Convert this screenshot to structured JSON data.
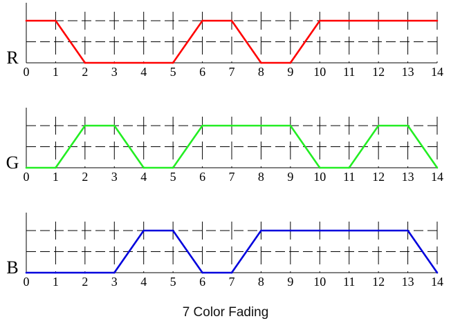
{
  "caption": "7 Color Fading",
  "chart_data": [
    {
      "type": "line",
      "label": "R",
      "color": "#ff0000",
      "x": [
        0,
        1,
        2,
        3,
        4,
        5,
        6,
        7,
        8,
        9,
        10,
        11,
        12,
        13,
        14
      ],
      "values": [
        2,
        2,
        0,
        0,
        0,
        0,
        2,
        2,
        0,
        0,
        2,
        2,
        2,
        2,
        2
      ],
      "xlim": [
        0,
        14
      ],
      "ylim": [
        0,
        2
      ],
      "xticks": [
        "0",
        "1",
        "2",
        "3",
        "4",
        "5",
        "6",
        "7",
        "8",
        "9",
        "10",
        "11",
        "12",
        "13",
        "14"
      ],
      "grid": true
    },
    {
      "type": "line",
      "label": "G",
      "color": "#22ee22",
      "x": [
        0,
        1,
        2,
        3,
        4,
        5,
        6,
        7,
        8,
        9,
        10,
        11,
        12,
        13,
        14
      ],
      "values": [
        0,
        0,
        2,
        2,
        0,
        0,
        2,
        2,
        2,
        2,
        0,
        0,
        2,
        2,
        0
      ],
      "xlim": [
        0,
        14
      ],
      "ylim": [
        0,
        2
      ],
      "xticks": [
        "0",
        "1",
        "2",
        "3",
        "4",
        "5",
        "6",
        "7",
        "8",
        "9",
        "10",
        "11",
        "12",
        "13",
        "14"
      ],
      "grid": true
    },
    {
      "type": "line",
      "label": "B",
      "color": "#0000dd",
      "x": [
        0,
        1,
        2,
        3,
        4,
        5,
        6,
        7,
        8,
        9,
        10,
        11,
        12,
        13,
        14
      ],
      "values": [
        0,
        0,
        0,
        0,
        2,
        2,
        0,
        0,
        2,
        2,
        2,
        2,
        2,
        2,
        0
      ],
      "xlim": [
        0,
        14
      ],
      "ylim": [
        0,
        2
      ],
      "xticks": [
        "0",
        "1",
        "2",
        "3",
        "4",
        "5",
        "6",
        "7",
        "8",
        "9",
        "10",
        "11",
        "12",
        "13",
        "14"
      ],
      "grid": true
    }
  ]
}
